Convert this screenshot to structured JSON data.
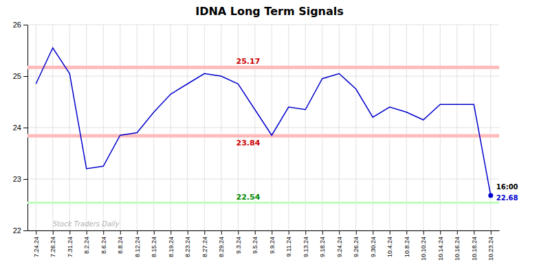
{
  "chart_data": {
    "type": "line",
    "title": "IDNA Long Term Signals",
    "categories": [
      "7.24.24",
      "7.26.24",
      "7.31.24",
      "8.2.24",
      "8.6.24",
      "8.8.24",
      "8.12.24",
      "8.15.24",
      "8.19.24",
      "8.23.24",
      "8.27.24",
      "8.29.24",
      "9.3.24",
      "9.5.24",
      "9.9.24",
      "9.11.24",
      "9.13.24",
      "9.18.24",
      "9.24.24",
      "9.26.24",
      "9.30.24",
      "10.4.24",
      "10.8.24",
      "10.10.24",
      "10.14.24",
      "10.16.24",
      "10.18.24",
      "10.23.24"
    ],
    "values": [
      24.85,
      25.55,
      25.05,
      23.2,
      23.25,
      23.85,
      23.9,
      24.3,
      24.65,
      24.85,
      25.05,
      25.0,
      24.85,
      24.35,
      23.85,
      24.4,
      24.35,
      24.95,
      25.05,
      24.75,
      24.2,
      24.4,
      24.3,
      24.15,
      24.45,
      24.45,
      24.45,
      22.68
    ],
    "color": "#0000cc",
    "reference_lines": [
      {
        "value": 25.17,
        "label": "25.17",
        "color": "#ffbbbb",
        "label_color": "#cc0000"
      },
      {
        "value": 23.84,
        "label": "23.84",
        "color": "#ffbbbb",
        "label_color": "#cc0000"
      },
      {
        "value": 22.54,
        "label": "22.54",
        "color": "#bbffbb",
        "label_color": "#008800"
      }
    ],
    "annotations": [
      {
        "text": "16:00"
      },
      {
        "text": "22.68",
        "color": "#0000cc"
      }
    ],
    "watermark": "Stock Traders Daily",
    "ylim": [
      22.0,
      26.0
    ],
    "yticks": [
      22,
      23,
      24,
      25,
      26
    ],
    "grid": true
  }
}
